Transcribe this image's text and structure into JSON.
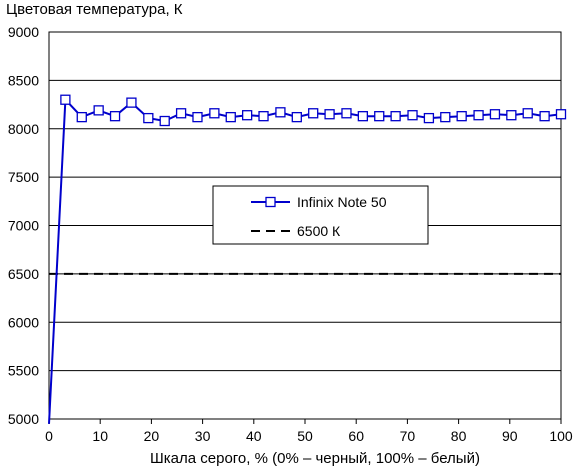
{
  "chart_data": {
    "type": "line",
    "title": "Цветовая температура, К",
    "xlabel": "Шкала серого, % (0% – черный, 100% – белый)",
    "ylabel": "",
    "xlim": [
      0,
      100
    ],
    "ylim": [
      5000,
      9000
    ],
    "x_ticks": [
      "0",
      "10",
      "20",
      "30",
      "40",
      "50",
      "60",
      "70",
      "80",
      "90",
      "100"
    ],
    "y_ticks": [
      "5000",
      "5500",
      "6000",
      "6500",
      "7000",
      "7500",
      "8000",
      "8500",
      "9000"
    ],
    "grid": "horizontal",
    "legend_position": "center-right",
    "series": [
      {
        "name": "Infinix Note 50",
        "color": "#0000cc",
        "marker": "square",
        "x": [
          0,
          3.2,
          6.4,
          9.7,
          12.9,
          16.1,
          19.4,
          22.6,
          25.8,
          29.0,
          32.3,
          35.5,
          38.7,
          41.9,
          45.2,
          48.4,
          51.6,
          54.8,
          58.1,
          61.3,
          64.5,
          67.7,
          71.0,
          74.2,
          77.4,
          80.6,
          83.9,
          87.1,
          90.3,
          93.5,
          96.8,
          100
        ],
        "y": [
          4950,
          8300,
          8120,
          8190,
          8130,
          8270,
          8110,
          8080,
          8160,
          8120,
          8160,
          8120,
          8140,
          8130,
          8170,
          8120,
          8160,
          8150,
          8160,
          8130,
          8130,
          8130,
          8140,
          8110,
          8120,
          8130,
          8140,
          8150,
          8140,
          8160,
          8130,
          8150
        ]
      },
      {
        "name": "6500 К",
        "color": "#000000",
        "style": "dashed",
        "x": [
          0,
          100
        ],
        "y": [
          6500,
          6500
        ]
      }
    ]
  }
}
